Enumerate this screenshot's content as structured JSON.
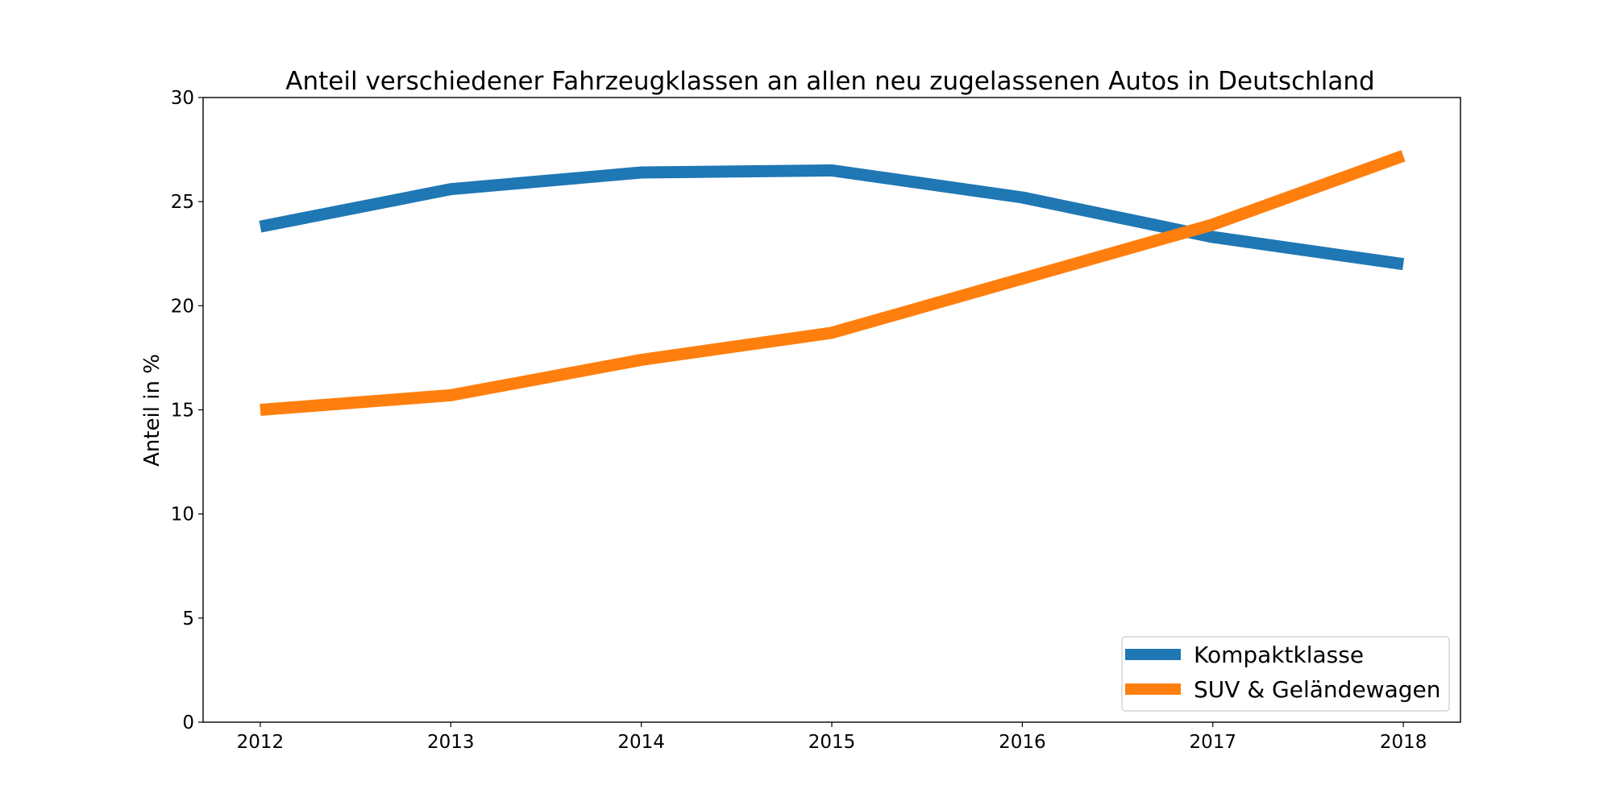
{
  "chart_data": {
    "type": "line",
    "title": "Anteil verschiedener Fahrzeugklassen an allen neu zugelassenen Autos in Deutschland",
    "xlabel": "",
    "ylabel": "Anteil in %",
    "x": [
      2012,
      2013,
      2014,
      2015,
      2016,
      2017,
      2018
    ],
    "x_tick_labels": [
      "2012",
      "2013",
      "2014",
      "2015",
      "2016",
      "2017",
      "2018"
    ],
    "y_ticks": [
      0,
      5,
      10,
      15,
      20,
      25,
      30
    ],
    "y_tick_labels": [
      "0",
      "5",
      "10",
      "15",
      "20",
      "25",
      "30"
    ],
    "xlim": [
      2011.7,
      2018.3
    ],
    "ylim": [
      0,
      30
    ],
    "grid": false,
    "legend_position": "bottom-right",
    "series": [
      {
        "name": "Kompaktklasse",
        "color": "#1f77b4",
        "values": [
          23.8,
          25.6,
          26.4,
          26.5,
          25.2,
          23.3,
          22.0
        ]
      },
      {
        "name": "SUV & Geländewagen",
        "color": "#ff7f0e",
        "values": [
          15.0,
          15.7,
          17.4,
          18.7,
          21.3,
          23.9,
          27.2
        ]
      }
    ]
  }
}
